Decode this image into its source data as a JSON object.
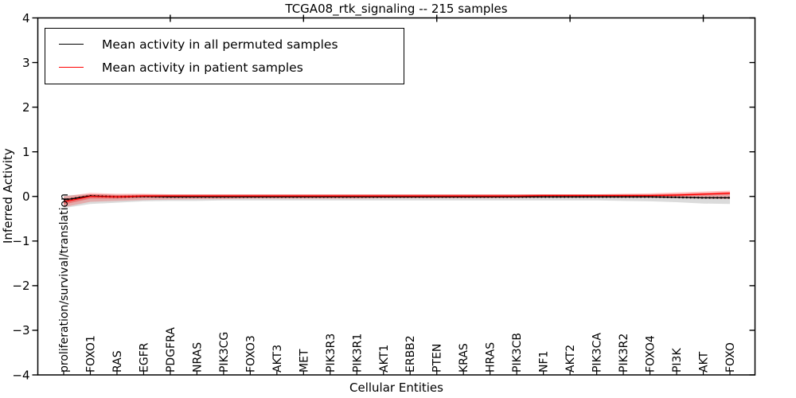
{
  "figure": {
    "title": "TCGA08_rtk_signaling -- 215 samples",
    "xlabel": "Cellular Entities",
    "ylabel": "Inferred Activity"
  },
  "legend": {
    "position": "upper-left",
    "entries": [
      {
        "label": "Mean activity in all permuted samples",
        "color": "#000000"
      },
      {
        "label": "Mean activity in patient samples",
        "color": "#ff0000"
      }
    ]
  },
  "chart_data": {
    "type": "line",
    "title": "TCGA08_rtk_signaling -- 215 samples",
    "xlabel": "Cellular Entities",
    "ylabel": "Inferred Activity",
    "ylim": [
      -4,
      4
    ],
    "grid": false,
    "legend_position": "upper-left",
    "yticks": {
      "values": [
        4,
        3,
        2,
        1,
        0,
        -1,
        -2,
        -3,
        -4
      ],
      "labels": [
        "4",
        "3",
        "2",
        "1",
        "0",
        "−1",
        "−2",
        "−3",
        "−4"
      ]
    },
    "top_tick_indices": [
      4,
      9,
      14,
      19,
      24
    ],
    "categories": [
      "proliferation/survival/translation",
      "FOXO1",
      "RAS",
      "EGFR",
      "PDGFRA",
      "NRAS",
      "PIK3CG",
      "FOXO3",
      "AKT3",
      "MET",
      "PIK3R3",
      "PIK3R1",
      "AKT1",
      "ERBB2",
      "PTEN",
      "KRAS",
      "HRAS",
      "PIK3CB",
      "NF1",
      "AKT2",
      "PIK3CA",
      "PIK3R2",
      "FOXO4",
      "PI3K",
      "AKT",
      "FOXO"
    ],
    "series": [
      {
        "name": "Mean activity in all permuted samples",
        "color": "#000000",
        "style": "solid-with-dots",
        "values": [
          -0.08,
          0.01,
          -0.01,
          0.0,
          -0.01,
          -0.01,
          -0.01,
          -0.01,
          -0.01,
          -0.01,
          -0.01,
          -0.01,
          -0.01,
          -0.01,
          -0.01,
          -0.01,
          -0.01,
          -0.01,
          -0.01,
          -0.01,
          -0.01,
          -0.01,
          -0.01,
          -0.02,
          -0.03,
          -0.03
        ]
      },
      {
        "name": "Mean activity in patient samples",
        "color": "#ff0000",
        "style": "solid",
        "values": [
          -0.12,
          0.0,
          -0.01,
          0.01,
          0.01,
          0.01,
          0.01,
          0.01,
          0.01,
          0.01,
          0.01,
          0.01,
          0.01,
          0.01,
          0.01,
          0.01,
          0.01,
          0.01,
          0.02,
          0.02,
          0.02,
          0.02,
          0.02,
          0.03,
          0.05,
          0.07
        ]
      }
    ],
    "bands": [
      {
        "name": "permuted-samples-spread",
        "color": "#999999",
        "opacity": 0.35,
        "upper": [
          0.02,
          0.05,
          0.04,
          0.04,
          0.04,
          0.04,
          0.04,
          0.04,
          0.04,
          0.04,
          0.04,
          0.04,
          0.04,
          0.04,
          0.04,
          0.04,
          0.04,
          0.04,
          0.04,
          0.04,
          0.04,
          0.04,
          0.04,
          0.05,
          0.06,
          0.07
        ],
        "lower": [
          -0.26,
          -0.17,
          -0.14,
          -0.11,
          -0.1,
          -0.1,
          -0.09,
          -0.09,
          -0.09,
          -0.09,
          -0.09,
          -0.09,
          -0.09,
          -0.09,
          -0.09,
          -0.09,
          -0.09,
          -0.09,
          -0.09,
          -0.09,
          -0.09,
          -0.1,
          -0.11,
          -0.13,
          -0.16,
          -0.17
        ]
      },
      {
        "name": "patient-samples-spread-outer",
        "color": "#ff0000",
        "opacity": 0.22,
        "upper": [
          0.0,
          0.08,
          0.06,
          0.06,
          0.05,
          0.05,
          0.05,
          0.05,
          0.05,
          0.05,
          0.05,
          0.05,
          0.05,
          0.05,
          0.05,
          0.05,
          0.05,
          0.05,
          0.05,
          0.05,
          0.05,
          0.06,
          0.07,
          0.09,
          0.11,
          0.13
        ],
        "lower": [
          -0.24,
          -0.12,
          -0.1,
          -0.08,
          -0.07,
          -0.06,
          -0.06,
          -0.05,
          -0.05,
          -0.05,
          -0.05,
          -0.05,
          -0.04,
          -0.04,
          -0.04,
          -0.04,
          -0.04,
          -0.04,
          -0.03,
          -0.03,
          -0.03,
          -0.03,
          -0.03,
          -0.04,
          -0.05,
          -0.06
        ]
      },
      {
        "name": "patient-samples-spread-inner",
        "color": "#ff0000",
        "opacity": 0.3,
        "upper": [
          -0.06,
          0.05,
          0.03,
          0.04,
          0.04,
          0.04,
          0.04,
          0.04,
          0.04,
          0.04,
          0.04,
          0.04,
          0.04,
          0.04,
          0.04,
          0.04,
          0.04,
          0.04,
          0.05,
          0.05,
          0.05,
          0.05,
          0.05,
          0.06,
          0.08,
          0.1
        ],
        "lower": [
          -0.18,
          -0.05,
          -0.05,
          -0.03,
          -0.03,
          -0.03,
          -0.03,
          -0.03,
          -0.03,
          -0.03,
          -0.03,
          -0.03,
          -0.03,
          -0.03,
          -0.03,
          -0.03,
          -0.03,
          -0.02,
          -0.02,
          -0.02,
          -0.02,
          -0.02,
          -0.01,
          0.0,
          0.02,
          0.04
        ]
      }
    ]
  }
}
